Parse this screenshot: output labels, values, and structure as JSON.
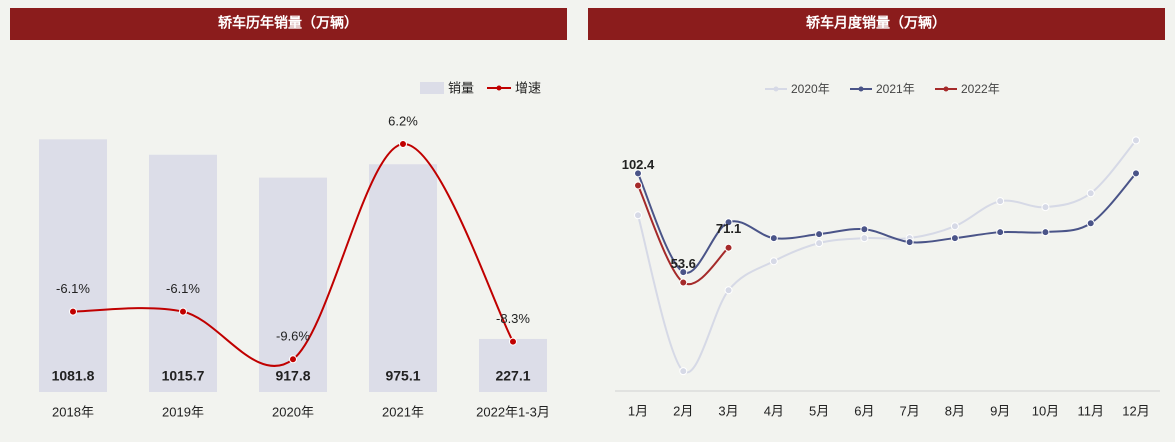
{
  "chart_data": [
    {
      "type": "bar",
      "title": "轿车历年销量（万辆）",
      "categories": [
        "2018年",
        "2019年",
        "2020年",
        "2021年",
        "2022年1-3月"
      ],
      "series": [
        {
          "name": "销量",
          "type": "bar",
          "color": "#dcdde8",
          "values": [
            1081.8,
            1015.7,
            917.8,
            975.1,
            227.1
          ]
        },
        {
          "name": "增速",
          "type": "line",
          "axis": "y2",
          "color": "#c00000",
          "values": [
            -6.1,
            -6.1,
            -9.6,
            6.2,
            -8.3
          ],
          "value_labels": [
            "-6.1%",
            "-6.1%",
            "-9.6%",
            "6.2%",
            "-8.3%"
          ]
        }
      ],
      "ylim": [
        0,
        1400
      ],
      "y2lim": [
        -12,
        12
      ],
      "smooth": true,
      "legend": "top-right"
    },
    {
      "type": "line",
      "title": "轿车月度销量（万辆）",
      "categories": [
        "1月",
        "2月",
        "3月",
        "4月",
        "5月",
        "6月",
        "7月",
        "8月",
        "9月",
        "10月",
        "11月",
        "12月"
      ],
      "series": [
        {
          "name": "2020年",
          "color": "#d6d9e6",
          "values": [
            87.4,
            9.0,
            49.7,
            64.3,
            73.4,
            75.9,
            75.9,
            81.9,
            94.5,
            91.5,
            98.5,
            125.1
          ]
        },
        {
          "name": "2021年",
          "color": "#4a5488",
          "values": [
            108.5,
            58.8,
            83.9,
            75.9,
            77.9,
            80.4,
            73.9,
            75.9,
            78.9,
            78.9,
            83.4,
            108.5
          ]
        },
        {
          "name": "2022年",
          "color": "#a52a2a",
          "values": [
            102.4,
            53.6,
            71.1,
            null,
            null,
            null,
            null,
            null,
            null,
            null,
            null,
            null
          ],
          "data_labels": true
        }
      ],
      "ylim": [
        0,
        160
      ],
      "smooth": true,
      "legend": "top"
    }
  ]
}
